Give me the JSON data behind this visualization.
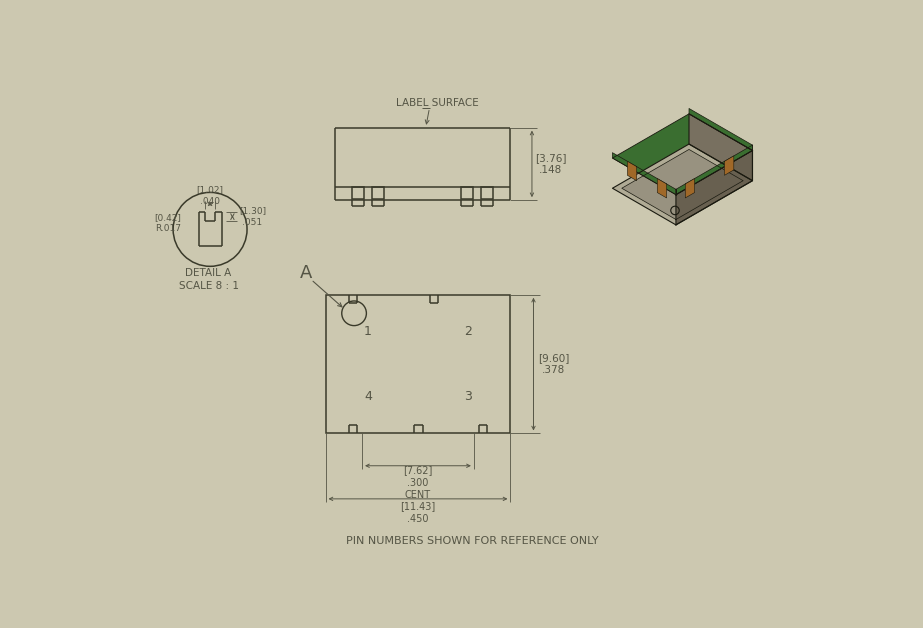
{
  "bg_color": "#ccc8b0",
  "line_color": "#3a3a2a",
  "dim_color": "#555545",
  "bottom_note": "PIN NUMBERS SHOWN FOR REFERENCE ONLY",
  "label_surface": "LABEL SURFACE",
  "detail_a_label": "DETAIL A\nSCALE 8 : 1",
  "pin1": "1",
  "pin2": "2",
  "pin3": "3",
  "pin4": "4",
  "dim_height_top": "[3.76]\n.148",
  "dim_width_cent": "[7.62]\n.300\nCENT",
  "dim_width_outer": "[11.43]\n.450",
  "dim_main_height": "[9.60]\n.378",
  "dim_notch_w": "[1.02]\n.040",
  "dim_notch_r": "[0.42]\nR.017",
  "dim_notch_h": "[1.30]\n.051",
  "iso_body_top": "#b0ab95",
  "iso_body_side_r": "#787060",
  "iso_body_side_f": "#686050",
  "iso_pcb_green": "#3a6e30",
  "iso_copper": "#a06828",
  "iso_outline": "#1a1a10",
  "iso_recess": "#989280"
}
